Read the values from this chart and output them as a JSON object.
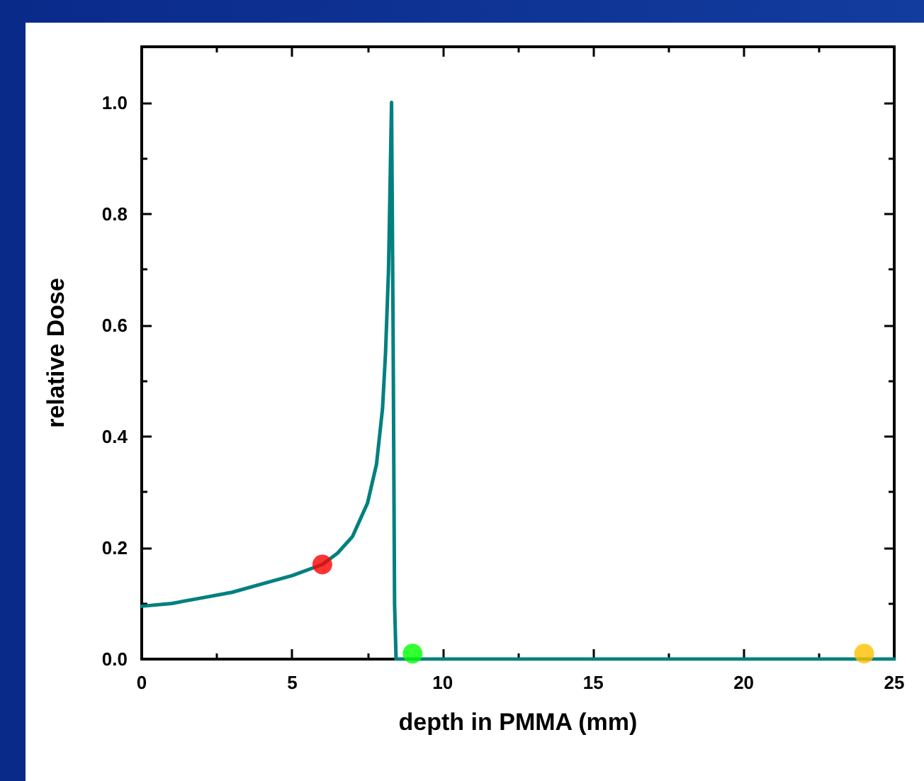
{
  "chart_data": {
    "type": "line",
    "xlabel": "depth in PMMA (mm)",
    "ylabel": "relative Dose",
    "xlim": [
      0,
      25
    ],
    "xticks": [
      0,
      5,
      10,
      15,
      20,
      25
    ],
    "ylim": [
      0,
      1.1
    ],
    "yticks": [
      {
        "value": 0,
        "label": "0.0"
      },
      0.2,
      0.4,
      0.6,
      0.8,
      {
        "value": 1,
        "label": "1.0"
      }
    ],
    "grid": false,
    "marker": "none",
    "line_style": "solid",
    "series": [
      {
        "color": "#008080",
        "x": [
          0,
          1,
          2,
          3,
          4,
          5,
          6,
          6.5,
          7,
          7.5,
          7.8,
          8.0,
          8.1,
          8.2,
          8.25,
          8.3,
          8.35,
          8.4,
          8.45,
          9,
          15,
          25
        ],
        "values": [
          0.095,
          0.1,
          0.11,
          0.12,
          0.135,
          0.15,
          0.17,
          0.19,
          0.22,
          0.28,
          0.35,
          0.45,
          0.55,
          0.7,
          0.85,
          1.0,
          0.6,
          0.1,
          0.0,
          0.0,
          0.0,
          0.0
        ]
      },
      {
        "type": "scatter",
        "marker": "circle",
        "x": [
          6,
          9,
          24
        ],
        "values": [
          0.17,
          0.01,
          0.01
        ],
        "colors": [
          "#ff0000",
          "#00ff00",
          "#ffc000"
        ]
      }
    ]
  }
}
